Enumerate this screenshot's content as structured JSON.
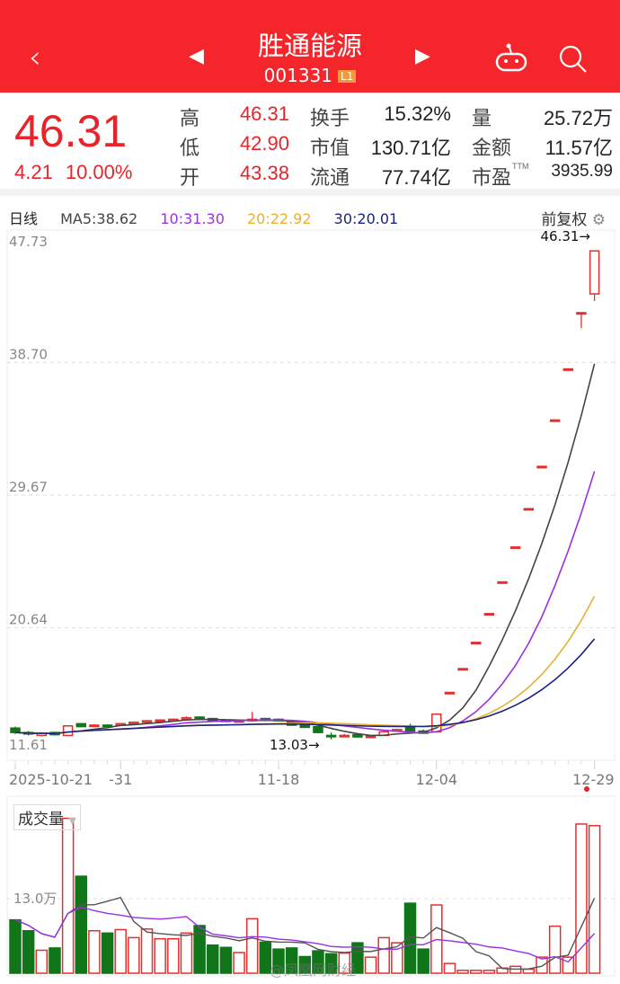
{
  "header": {
    "title": "胜通能源",
    "code": "001331",
    "level_badge": "L1",
    "icons": [
      "back-icon",
      "prev-stock-icon",
      "next-stock-icon",
      "robot-icon",
      "search-icon"
    ]
  },
  "quote": {
    "price": "46.31",
    "change": "4.21",
    "change_pct": "10.00%",
    "fields": [
      {
        "label": "高",
        "value": "46.31",
        "red": true
      },
      {
        "label": "换手",
        "value": "15.32%"
      },
      {
        "label": "量",
        "value": "25.72万"
      },
      {
        "label": "低",
        "value": "42.90",
        "red": true
      },
      {
        "label": "市值",
        "value": "130.71亿"
      },
      {
        "label": "金额",
        "value": "11.57亿"
      },
      {
        "label": "开",
        "value": "43.38",
        "red": true
      },
      {
        "label": "流通",
        "value": "77.74亿"
      },
      {
        "label": "市盈",
        "sup": "TTM",
        "value": "3935.99"
      }
    ]
  },
  "ma": {
    "period": "日线",
    "ma5": "MA5:38.62",
    "ma10": "10:31.30",
    "ma20": "20:22.92",
    "ma30": "30:20.01",
    "adjust": "前复权"
  },
  "colors": {
    "up": "#e0302f",
    "down": "#11751a",
    "ma5": "#444444",
    "ma10": "#9b30e0",
    "ma20": "#e8b030",
    "ma30": "#1a237e",
    "header": "#f5262b"
  },
  "chart_data": {
    "type": "candlestick",
    "y_ticks": [
      "47.73",
      "38.70",
      "29.67",
      "20.64",
      "11.61"
    ],
    "ylim": [
      11.61,
      47.73
    ],
    "x_ticks": [
      {
        "i": 0,
        "label": "2025-10-21"
      },
      {
        "i": 8,
        "label": "-31"
      },
      {
        "i": 20,
        "label": "11-18"
      },
      {
        "i": 32,
        "label": "12-04"
      },
      {
        "i": 44,
        "label": "12-29"
      }
    ],
    "annotations": {
      "high": "46.31→",
      "low": "13.03→"
    },
    "candles": [
      [
        13.8,
        13.9,
        13.4,
        13.5
      ],
      [
        13.5,
        13.6,
        13.3,
        13.4
      ],
      [
        13.3,
        13.5,
        13.25,
        13.45
      ],
      [
        13.5,
        13.55,
        13.3,
        13.35
      ],
      [
        13.3,
        14.0,
        13.3,
        13.95
      ],
      [
        14.1,
        14.15,
        13.85,
        13.9
      ],
      [
        13.95,
        14.05,
        13.9,
        14.0
      ],
      [
        14.0,
        14.05,
        13.9,
        13.95
      ],
      [
        14.0,
        14.15,
        13.95,
        14.1
      ],
      [
        14.1,
        14.25,
        14.05,
        14.2
      ],
      [
        14.2,
        14.35,
        14.15,
        14.3
      ],
      [
        14.3,
        14.4,
        14.25,
        14.35
      ],
      [
        14.3,
        14.45,
        14.25,
        14.4
      ],
      [
        14.4,
        14.6,
        14.35,
        14.5
      ],
      [
        14.55,
        14.6,
        14.35,
        14.4
      ],
      [
        14.45,
        14.5,
        14.25,
        14.3
      ],
      [
        14.35,
        14.4,
        14.2,
        14.25
      ],
      [
        14.25,
        14.35,
        14.2,
        14.3
      ],
      [
        14.3,
        14.9,
        14.25,
        14.4
      ],
      [
        14.45,
        14.5,
        14.3,
        14.35
      ],
      [
        14.4,
        14.45,
        14.25,
        14.3
      ],
      [
        14.2,
        14.25,
        13.95,
        14.0
      ],
      [
        14.0,
        14.05,
        13.8,
        13.85
      ],
      [
        13.9,
        13.95,
        13.45,
        13.5
      ],
      [
        13.3,
        13.5,
        13.03,
        13.25
      ],
      [
        13.3,
        13.4,
        13.25,
        13.3
      ],
      [
        13.35,
        13.4,
        13.15,
        13.2
      ],
      [
        13.2,
        13.3,
        13.15,
        13.25
      ],
      [
        13.3,
        13.6,
        13.25,
        13.55
      ],
      [
        13.6,
        13.75,
        13.55,
        13.7
      ],
      [
        13.85,
        14.1,
        13.55,
        13.6
      ],
      [
        13.6,
        13.7,
        13.4,
        13.45
      ],
      [
        13.55,
        14.75,
        13.5,
        14.75
      ],
      [
        16.23,
        16.23,
        16.23,
        16.23
      ],
      [
        17.85,
        17.85,
        17.85,
        17.85
      ],
      [
        19.64,
        19.64,
        19.64,
        19.64
      ],
      [
        21.6,
        21.6,
        21.6,
        21.6
      ],
      [
        23.76,
        23.76,
        23.76,
        23.76
      ],
      [
        26.14,
        26.14,
        26.14,
        26.14
      ],
      [
        28.75,
        28.75,
        28.75,
        28.75
      ],
      [
        31.63,
        31.63,
        31.63,
        31.63
      ],
      [
        34.79,
        34.79,
        34.79,
        34.79
      ],
      [
        38.27,
        38.27,
        38.27,
        38.27
      ],
      [
        42.1,
        42.1,
        41.05,
        42.1
      ],
      [
        43.38,
        46.31,
        42.9,
        46.31
      ]
    ]
  },
  "volume": {
    "label": "成交量",
    "tick": "13.0万",
    "tick_value": 13.0,
    "values": [
      9.3,
      7.4,
      4.0,
      4.4,
      27.0,
      16.9,
      7.4,
      7.0,
      7.6,
      6.2,
      7.7,
      6.0,
      6.0,
      7.0,
      8.3,
      4.9,
      4.5,
      3.6,
      9.5,
      5.4,
      4.2,
      4.4,
      2.9,
      3.9,
      3.4,
      3.5,
      5.3,
      2.8,
      6.2,
      5.3,
      12.2,
      4.2,
      11.9,
      1.7,
      0.5,
      0.5,
      0.5,
      0.9,
      1.2,
      0.7,
      2.8,
      8.2,
      2.8,
      26.0,
      25.72
    ]
  },
  "watermark": "@凤凰网财经"
}
